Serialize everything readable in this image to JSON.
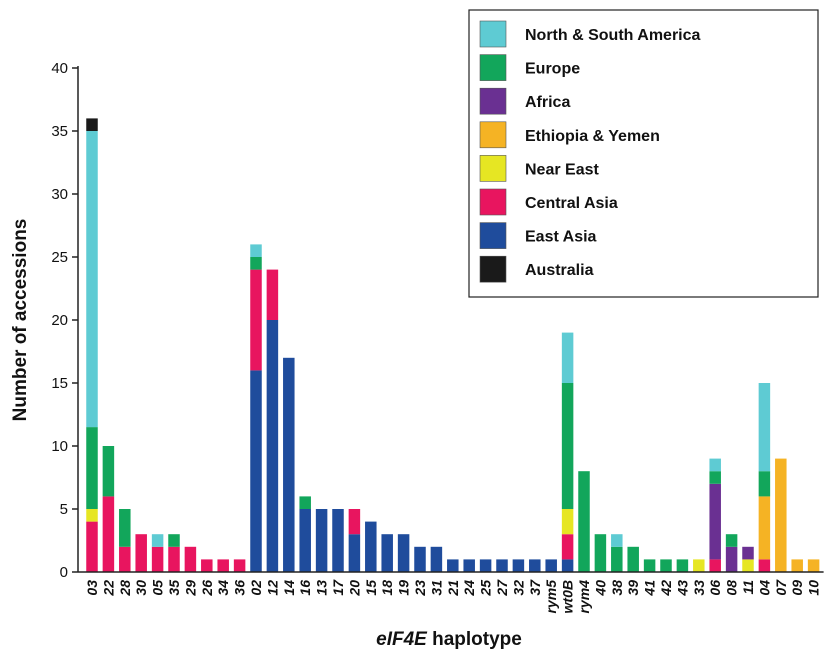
{
  "chart_data": {
    "type": "bar",
    "stacked": true,
    "ylabel": "Number of accessions",
    "xlabel_italic": "eIF4E",
    "xlabel_rest": " haplotype",
    "ylim": [
      0,
      40
    ],
    "yticks": [
      0,
      5,
      10,
      15,
      20,
      25,
      30,
      35,
      40
    ],
    "legend_position": "top-right",
    "categories": [
      "03",
      "22",
      "28",
      "30",
      "05",
      "35",
      "29",
      "26",
      "34",
      "36",
      "02",
      "12",
      "14",
      "16",
      "13",
      "17",
      "20",
      "15",
      "18",
      "19",
      "23",
      "31",
      "21",
      "24",
      "25",
      "27",
      "32",
      "37",
      "rym5",
      "wt0B",
      "rym4",
      "40",
      "38",
      "39",
      "41",
      "42",
      "43",
      "33",
      "06",
      "08",
      "11",
      "04",
      "07",
      "09",
      "10"
    ],
    "series": [
      {
        "name": "East Asia",
        "color": "#1f4c9c",
        "values": [
          0,
          0,
          0,
          0,
          0,
          0,
          0,
          0,
          0,
          0,
          16,
          20,
          17,
          5,
          5,
          5,
          3,
          4,
          3,
          3,
          2,
          2,
          1,
          1,
          1,
          1,
          1,
          1,
          1,
          1,
          0,
          0,
          0,
          0,
          0,
          0,
          0,
          0,
          0,
          0,
          0,
          0,
          0,
          0,
          0
        ]
      },
      {
        "name": "Central Asia",
        "color": "#e8155f",
        "values": [
          4,
          6,
          2,
          3,
          2,
          2,
          2,
          1,
          1,
          1,
          8,
          4,
          0,
          0,
          0,
          0,
          2,
          0,
          0,
          0,
          0,
          0,
          0,
          0,
          0,
          0,
          0,
          0,
          0,
          2,
          0,
          0,
          0,
          0,
          0,
          0,
          0,
          0,
          1,
          0,
          0,
          1,
          0,
          0,
          0
        ]
      },
      {
        "name": "Near East",
        "color": "#e6e623",
        "values": [
          1,
          0,
          0,
          0,
          0,
          0,
          0,
          0,
          0,
          0,
          0,
          0,
          0,
          0,
          0,
          0,
          0,
          0,
          0,
          0,
          0,
          0,
          0,
          0,
          0,
          0,
          0,
          0,
          0,
          2,
          0,
          0,
          0,
          0,
          0,
          0,
          0,
          1,
          0,
          0,
          1,
          0,
          0,
          0,
          0
        ]
      },
      {
        "name": "Ethiopia & Yemen",
        "color": "#f5b324",
        "values": [
          0,
          0,
          0,
          0,
          0,
          0,
          0,
          0,
          0,
          0,
          0,
          0,
          0,
          0,
          0,
          0,
          0,
          0,
          0,
          0,
          0,
          0,
          0,
          0,
          0,
          0,
          0,
          0,
          0,
          0,
          0,
          0,
          0,
          0,
          0,
          0,
          0,
          0,
          0,
          0,
          0,
          5,
          9,
          1,
          1
        ]
      },
      {
        "name": "Africa",
        "color": "#6a3092",
        "values": [
          0,
          0,
          0,
          0,
          0,
          0,
          0,
          0,
          0,
          0,
          0,
          0,
          0,
          0,
          0,
          0,
          0,
          0,
          0,
          0,
          0,
          0,
          0,
          0,
          0,
          0,
          0,
          0,
          0,
          0,
          0,
          0,
          0,
          0,
          0,
          0,
          0,
          0,
          6,
          2,
          1,
          0,
          0,
          0,
          0
        ]
      },
      {
        "name": "Europe",
        "color": "#12a65b",
        "values": [
          6.5,
          4,
          3,
          0,
          0,
          1,
          0,
          0,
          0,
          0,
          1,
          0,
          0,
          1,
          0,
          0,
          0,
          0,
          0,
          0,
          0,
          0,
          0,
          0,
          0,
          0,
          0,
          0,
          0,
          10,
          8,
          3,
          2,
          2,
          1,
          1,
          1,
          0,
          1,
          1,
          0,
          2,
          0,
          0,
          0
        ]
      },
      {
        "name": "North & South America",
        "color": "#5ecbd3",
        "values": [
          23.5,
          0,
          0,
          0,
          1,
          0,
          0,
          0,
          0,
          0,
          1,
          0,
          0,
          0,
          0,
          0,
          0,
          0,
          0,
          0,
          0,
          0,
          0,
          0,
          0,
          0,
          0,
          0,
          0,
          4,
          0,
          0,
          1,
          0,
          0,
          0,
          0,
          0,
          1,
          0,
          0,
          7,
          0,
          0,
          0
        ]
      },
      {
        "name": "Australia",
        "color": "#1a1a1a",
        "values": [
          1,
          0,
          0,
          0,
          0,
          0,
          0,
          0,
          0,
          0,
          0,
          0,
          0,
          0,
          0,
          0,
          0,
          0,
          0,
          0,
          0,
          0,
          0,
          0,
          0,
          0,
          0,
          0,
          0,
          0,
          0,
          0,
          0,
          0,
          0,
          0,
          0,
          0,
          0,
          0,
          0,
          0,
          0,
          0,
          0
        ]
      }
    ],
    "legend": [
      {
        "name": "North & South America",
        "color": "#5ecbd3"
      },
      {
        "name": "Europe",
        "color": "#12a65b"
      },
      {
        "name": "Africa",
        "color": "#6a3092"
      },
      {
        "name": "Ethiopia & Yemen",
        "color": "#f5b324"
      },
      {
        "name": "Near East",
        "color": "#e6e623"
      },
      {
        "name": "Central Asia",
        "color": "#e8155f"
      },
      {
        "name": "East Asia",
        "color": "#1f4c9c"
      },
      {
        "name": "Australia",
        "color": "#1a1a1a"
      }
    ]
  }
}
